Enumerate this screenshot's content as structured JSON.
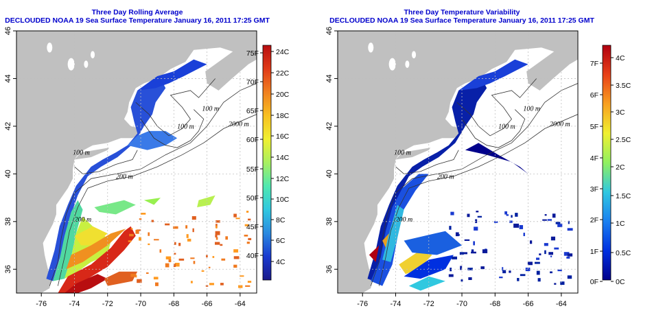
{
  "panels": [
    {
      "id": "avg",
      "title_line1": "Three Day Rolling Average",
      "title_line2": "DECLOUDED NOAA 19 Sea Surface Temperature January 16, 2011 17:25 GMT",
      "colorbar": {
        "left_labels": [
          "75F",
          "70F",
          "65F",
          "60F",
          "55F",
          "50F",
          "45F",
          "40F"
        ],
        "right_labels": [
          "24C",
          "22C",
          "20C",
          "18C",
          "16C",
          "14C",
          "12C",
          "10C",
          "8C",
          "6C",
          "4C"
        ]
      }
    },
    {
      "id": "var",
      "title_line1": "Three Day Temperature Variability",
      "title_line2": "DECLOUDED NOAA 19 Sea Surface Temperature January 16, 2011 17:25 GMT",
      "colorbar": {
        "left_labels": [
          "7F",
          "6F",
          "5F",
          "4F",
          "3F",
          "2F",
          "1F",
          "0F"
        ],
        "right_labels": [
          "4C",
          "3.5C",
          "3C",
          "2.5C",
          "2C",
          "1.5C",
          "1C",
          "0.5C",
          "0C"
        ]
      }
    }
  ],
  "map": {
    "lon_ticks": [
      "-76",
      "-74",
      "-72",
      "-70",
      "-68",
      "-66",
      "-64"
    ],
    "lat_ticks": [
      "36",
      "38",
      "40",
      "42",
      "44",
      "46"
    ],
    "isobath_labels": [
      "100 m",
      "2000 m",
      "100 m",
      "200 m",
      "100 m",
      "200 m"
    ]
  },
  "colors": {
    "title": "#0000cc",
    "land": "#c0c0c0",
    "ocean_bg": "#ffffff",
    "grid": "#bfbfbf"
  }
}
